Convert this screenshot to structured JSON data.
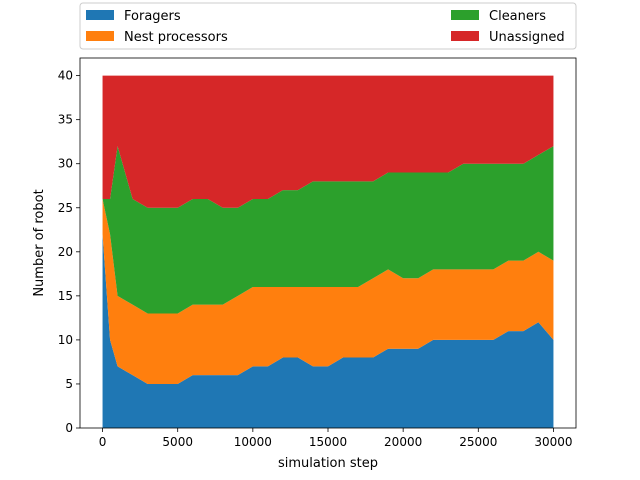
{
  "chart_data": {
    "type": "area",
    "stacked": true,
    "xlabel": "simulation step",
    "ylabel": "Number of robot",
    "xlim": [
      -1500,
      31500
    ],
    "ylim": [
      0,
      42
    ],
    "xticks": [
      0,
      5000,
      10000,
      15000,
      20000,
      25000,
      30000
    ],
    "yticks": [
      0,
      5,
      10,
      15,
      20,
      25,
      30,
      35,
      40
    ],
    "grid": false,
    "legend": {
      "placement": "top, above plot",
      "columns": 2
    },
    "x": [
      0,
      500,
      1000,
      2000,
      3000,
      4000,
      5000,
      6000,
      7000,
      8000,
      9000,
      10000,
      11000,
      12000,
      13000,
      14000,
      15000,
      16000,
      17000,
      18000,
      19000,
      20000,
      21000,
      22000,
      23000,
      24000,
      25000,
      26000,
      27000,
      28000,
      29000,
      30000
    ],
    "series": [
      {
        "name": "Foragers",
        "color": "#1f77b4",
        "values": [
          22,
          10,
          7,
          6,
          5,
          5,
          5,
          6,
          6,
          6,
          6,
          7,
          7,
          8,
          8,
          7,
          7,
          8,
          8,
          8,
          9,
          9,
          9,
          10,
          10,
          10,
          10,
          10,
          11,
          11,
          12,
          10
        ]
      },
      {
        "name": "Nest processors",
        "color": "#ff7f0e",
        "values": [
          4,
          12,
          8,
          8,
          8,
          8,
          8,
          8,
          8,
          8,
          9,
          9,
          9,
          8,
          8,
          9,
          9,
          8,
          8,
          9,
          9,
          8,
          8,
          8,
          8,
          8,
          8,
          8,
          8,
          8,
          8,
          9
        ]
      },
      {
        "name": "Cleaners",
        "color": "#2ca02c",
        "values": [
          0,
          4,
          17,
          12,
          12,
          12,
          12,
          12,
          12,
          11,
          10,
          10,
          10,
          11,
          11,
          12,
          12,
          12,
          12,
          11,
          11,
          12,
          12,
          11,
          11,
          12,
          12,
          12,
          11,
          11,
          11,
          13
        ]
      },
      {
        "name": "Unassigned",
        "color": "#d62728",
        "values": [
          14,
          14,
          8,
          14,
          15,
          15,
          15,
          14,
          14,
          15,
          15,
          14,
          14,
          13,
          13,
          12,
          12,
          12,
          12,
          12,
          11,
          11,
          11,
          11,
          11,
          10,
          10,
          10,
          10,
          10,
          9,
          8
        ]
      }
    ]
  }
}
